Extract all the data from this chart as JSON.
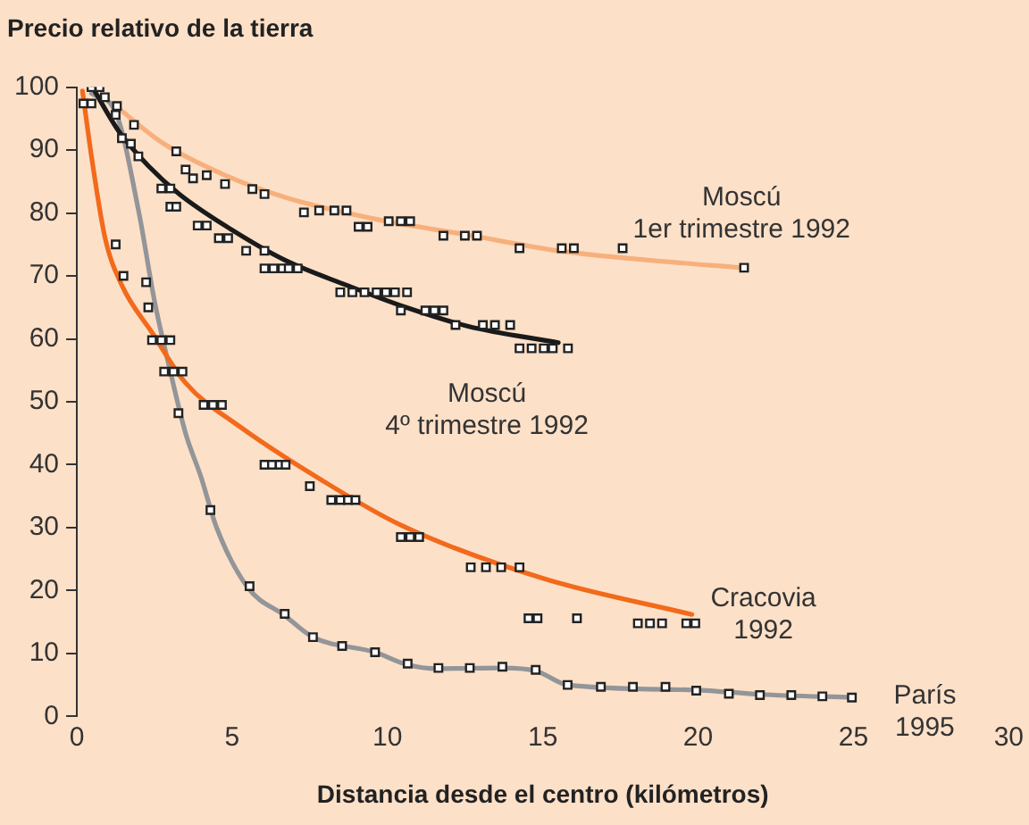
{
  "chart_data": {
    "type": "line",
    "title": "Precio relativo de la tierra",
    "xlabel": "Distancia desde el centro (kilómetros)",
    "xlim": [
      0,
      30
    ],
    "xticks": [
      0,
      5,
      10,
      15,
      20,
      25,
      30
    ],
    "ylim": [
      0,
      100
    ],
    "yticks": [
      0,
      10,
      20,
      30,
      40,
      50,
      60,
      70,
      80,
      90,
      100
    ],
    "grid": false,
    "legend": false,
    "series": [
      {
        "name": "Moscú 1er trimestre 1992",
        "color": "#f7b07c",
        "marker": "none",
        "x": [
          1.25,
          2.8,
          4.77,
          6.7,
          9.65,
          12.6,
          15.5,
          18.4,
          21.4
        ],
        "values": [
          97,
          91,
          86,
          82.5,
          79,
          76.5,
          74,
          72.5,
          71.3
        ]
      },
      {
        "name": "Moscú 4º trimestre 1992",
        "color": "#1a1a1a",
        "marker": "none",
        "x": [
          0.5,
          1.35,
          2.3,
          3.3,
          4.77,
          6.7,
          8.7,
          10.6,
          12.6,
          15.5
        ],
        "values": [
          100,
          93,
          87.5,
          83,
          78,
          72.5,
          68.5,
          65,
          62,
          59.4
        ]
      },
      {
        "name": "Cracovia 1992",
        "color": "#f26a1b",
        "marker": "none",
        "x": [
          0.18,
          0.5,
          0.91,
          1.45,
          2.42,
          3.5,
          5.26,
          7.8,
          10.43,
          15.03,
          19.8
        ],
        "values": [
          99.4,
          88,
          76,
          68.5,
          61,
          53,
          46,
          37.8,
          30.4,
          21.9,
          16.2
        ]
      },
      {
        "name": "París 1995",
        "color": "#939598",
        "marker": "none",
        "x": [
          0.47,
          1.25,
          2.0,
          2.5,
          3.0,
          3.5,
          4.0,
          4.5,
          5.5,
          6.7,
          7.6,
          9.6,
          10.6,
          11.6,
          13.7,
          14.8,
          15.8,
          19.9,
          22,
          25
        ],
        "values": [
          99,
          96,
          80,
          66,
          55,
          45,
          38,
          30,
          20.5,
          16,
          12.6,
          10.2,
          8.3,
          7.6,
          7.7,
          7.2,
          5.0,
          4.2,
          3.5,
          3.0
        ]
      },
      {
        "type": "scatter",
        "color": "#ffffff",
        "marker": "square",
        "x": [
          1.29,
          1.84,
          3.2,
          3.5,
          3.74,
          4.18,
          4.77,
          5.65,
          6.04,
          7.31,
          7.8,
          8.29,
          8.68,
          9.07,
          9.36,
          10.04,
          10.43,
          10.73,
          11.8,
          12.49,
          12.88,
          14.25,
          15.61,
          16.0,
          17.57,
          21.48
        ],
        "values": [
          97,
          94,
          89.8,
          86.9,
          85.5,
          86,
          84.6,
          83.8,
          83,
          80.1,
          80.4,
          80.4,
          80.4,
          77.8,
          77.8,
          78.7,
          78.7,
          78.7,
          76.4,
          76.4,
          76.4,
          74.4,
          74.4,
          74.4,
          74.4,
          71.3
        ]
      },
      {
        "type": "scatter",
        "color": "#ffffff",
        "marker": "square",
        "x": [
          0.47,
          0.73,
          0.9,
          1.45,
          1.74,
          1.98,
          2.72,
          3.01,
          3.01,
          3.2,
          3.89,
          4.18,
          4.57,
          4.87,
          5.45,
          6.04,
          6.04,
          6.33,
          6.62,
          6.82,
          7.11,
          8.48,
          8.87,
          9.26,
          9.65,
          9.95,
          10.24,
          10.63,
          10.43,
          11.22,
          11.51,
          11.8,
          12.19,
          13.07,
          13.46,
          13.95,
          14.25,
          14.64,
          15.03,
          15.32,
          15.81
        ],
        "values": [
          100,
          100,
          98.4,
          91.9,
          91,
          89,
          83.9,
          83.9,
          81,
          81,
          78,
          78,
          76,
          76,
          74,
          74,
          71.2,
          71.2,
          71.2,
          71.2,
          71.2,
          67.4,
          67.4,
          67.4,
          67.4,
          67.4,
          67.4,
          67.4,
          64.5,
          64.5,
          64.5,
          64.5,
          62.2,
          62.2,
          62.2,
          62.2,
          58.5,
          58.5,
          58.5,
          58.5,
          58.5
        ]
      },
      {
        "type": "scatter",
        "color": "#ffffff",
        "marker": "square",
        "x": [
          1.25,
          1.5,
          2.42,
          2.72,
          3.01,
          2.81,
          3.11,
          3.4,
          4.08,
          4.38,
          4.67,
          6.04,
          6.28,
          6.53,
          6.72,
          7.5,
          8.19,
          8.48,
          8.73,
          8.97,
          10.43,
          10.73,
          11.02,
          12.68,
          13.17,
          13.66,
          14.25,
          14.54,
          14.83,
          16.1,
          18.06,
          18.45,
          18.84,
          19.62,
          19.91
        ],
        "values": [
          75,
          70,
          59.8,
          59.8,
          59.8,
          54.8,
          54.8,
          54.8,
          49.5,
          49.5,
          49.5,
          40,
          40,
          40,
          40,
          36.6,
          34.4,
          34.4,
          34.4,
          34.4,
          28.5,
          28.5,
          28.5,
          23.7,
          23.7,
          23.7,
          23.7,
          15.6,
          15.6,
          15.6,
          14.8,
          14.8,
          14.8,
          14.8,
          14.8
        ]
      },
      {
        "type": "scatter",
        "color": "#ffffff",
        "marker": "square",
        "x": [
          0.21,
          0.47,
          1.25,
          2.23,
          2.3,
          3.27,
          4.3,
          5.56,
          6.69,
          7.6,
          8.54,
          9.6,
          10.65,
          11.64,
          12.65,
          13.7,
          14.77,
          15.8,
          16.87,
          17.9,
          18.95,
          19.94,
          20.99,
          21.99,
          23.0,
          24.0,
          24.95
        ],
        "values": [
          97.4,
          97.4,
          95.6,
          69,
          65,
          48.2,
          32.8,
          20.7,
          16.3,
          12.6,
          11.2,
          10.2,
          8.4,
          7.7,
          7.7,
          7.9,
          7.4,
          5.0,
          4.7,
          4.7,
          4.7,
          4.1,
          3.6,
          3.4,
          3.4,
          3.2,
          3.0
        ]
      }
    ]
  }
}
